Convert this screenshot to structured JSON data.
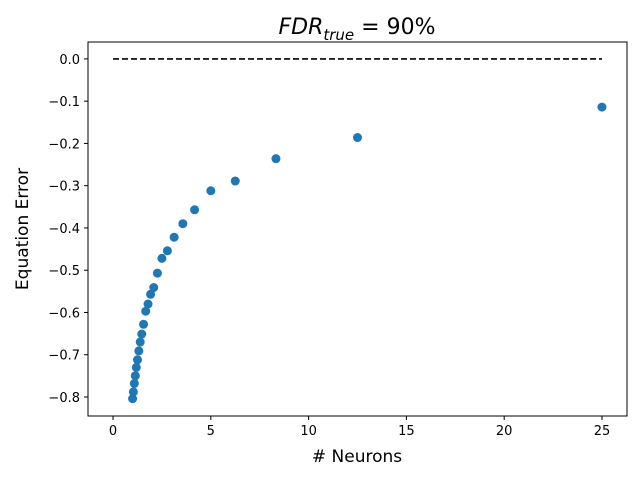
{
  "chart_data": {
    "type": "scatter",
    "title": [
      "FDR",
      "true",
      " = 90%"
    ],
    "x_label": "# Neurons",
    "y_label": "Equation Error",
    "x": [
      25,
      12.5,
      8.33,
      6.25,
      5,
      4.17,
      3.57,
      3.125,
      2.78,
      2.5,
      2.27,
      2.08,
      1.92,
      1.79,
      1.67,
      1.56,
      1.47,
      1.39,
      1.32,
      1.25,
      1.19,
      1.14,
      1.09,
      1.04,
      1.0
    ],
    "values": [
      -0.114,
      -0.186,
      -0.236,
      -0.289,
      -0.312,
      -0.357,
      -0.39,
      -0.422,
      -0.454,
      -0.472,
      -0.507,
      -0.541,
      -0.557,
      -0.58,
      -0.597,
      -0.628,
      -0.651,
      -0.67,
      -0.691,
      -0.712,
      -0.73,
      -0.75,
      -0.768,
      -0.788,
      -0.804
    ],
    "color": "#1f77b4",
    "hline": {
      "y": 0,
      "x": [
        0,
        25
      ],
      "color": "#000000",
      "style": "dashed"
    },
    "xlim": [
      -1.28,
      26.28
    ],
    "ylim": [
      -0.845,
      0.04
    ],
    "xticks": [
      0,
      5,
      10,
      15,
      20,
      25
    ],
    "yticks": [
      {
        "value": 0,
        "label": "0.0"
      },
      {
        "value": -0.1,
        "label": "−0.1"
      },
      {
        "value": -0.2,
        "label": "−0.2"
      },
      {
        "value": -0.3,
        "label": "−0.3"
      },
      {
        "value": -0.4,
        "label": "−0.4"
      },
      {
        "value": -0.5,
        "label": "−0.5"
      },
      {
        "value": -0.6,
        "label": "−0.6"
      },
      {
        "value": -0.7,
        "label": "−0.7"
      },
      {
        "value": -0.8,
        "label": "−0.8"
      }
    ],
    "grid": false
  }
}
